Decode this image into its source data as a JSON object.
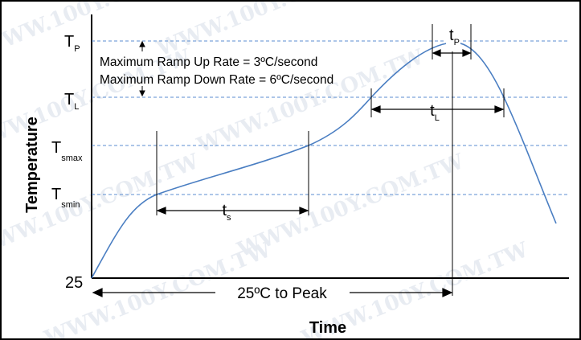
{
  "diagram": {
    "y_axis_label": "Temperature",
    "x_axis_label": "Time",
    "levels": {
      "tp": {
        "main": "T",
        "sub": "P"
      },
      "tl": {
        "main": "T",
        "sub": "L"
      },
      "tsmax": {
        "main": "T",
        "sub": "smax"
      },
      "tsmin": {
        "main": "T",
        "sub": "smin"
      },
      "ambient": "25"
    },
    "notes": {
      "ramp_up": "Maximum Ramp Up Rate = 3ºC/second",
      "ramp_down": "Maximum Ramp Down Rate = 6ºC/second"
    },
    "intervals": {
      "ts": {
        "main": "t",
        "sub": "s"
      },
      "tl": {
        "main": "t",
        "sub": "L"
      },
      "tp": {
        "main": "t",
        "sub": "P"
      },
      "to_peak": "25ºC to Peak"
    },
    "watermark": "WWW.100Y.COM.TW",
    "colors": {
      "curve": "#4a7ec2",
      "dashed": "#5b8ed0",
      "frame": "#000000",
      "watermark": "#d6dde8"
    }
  }
}
